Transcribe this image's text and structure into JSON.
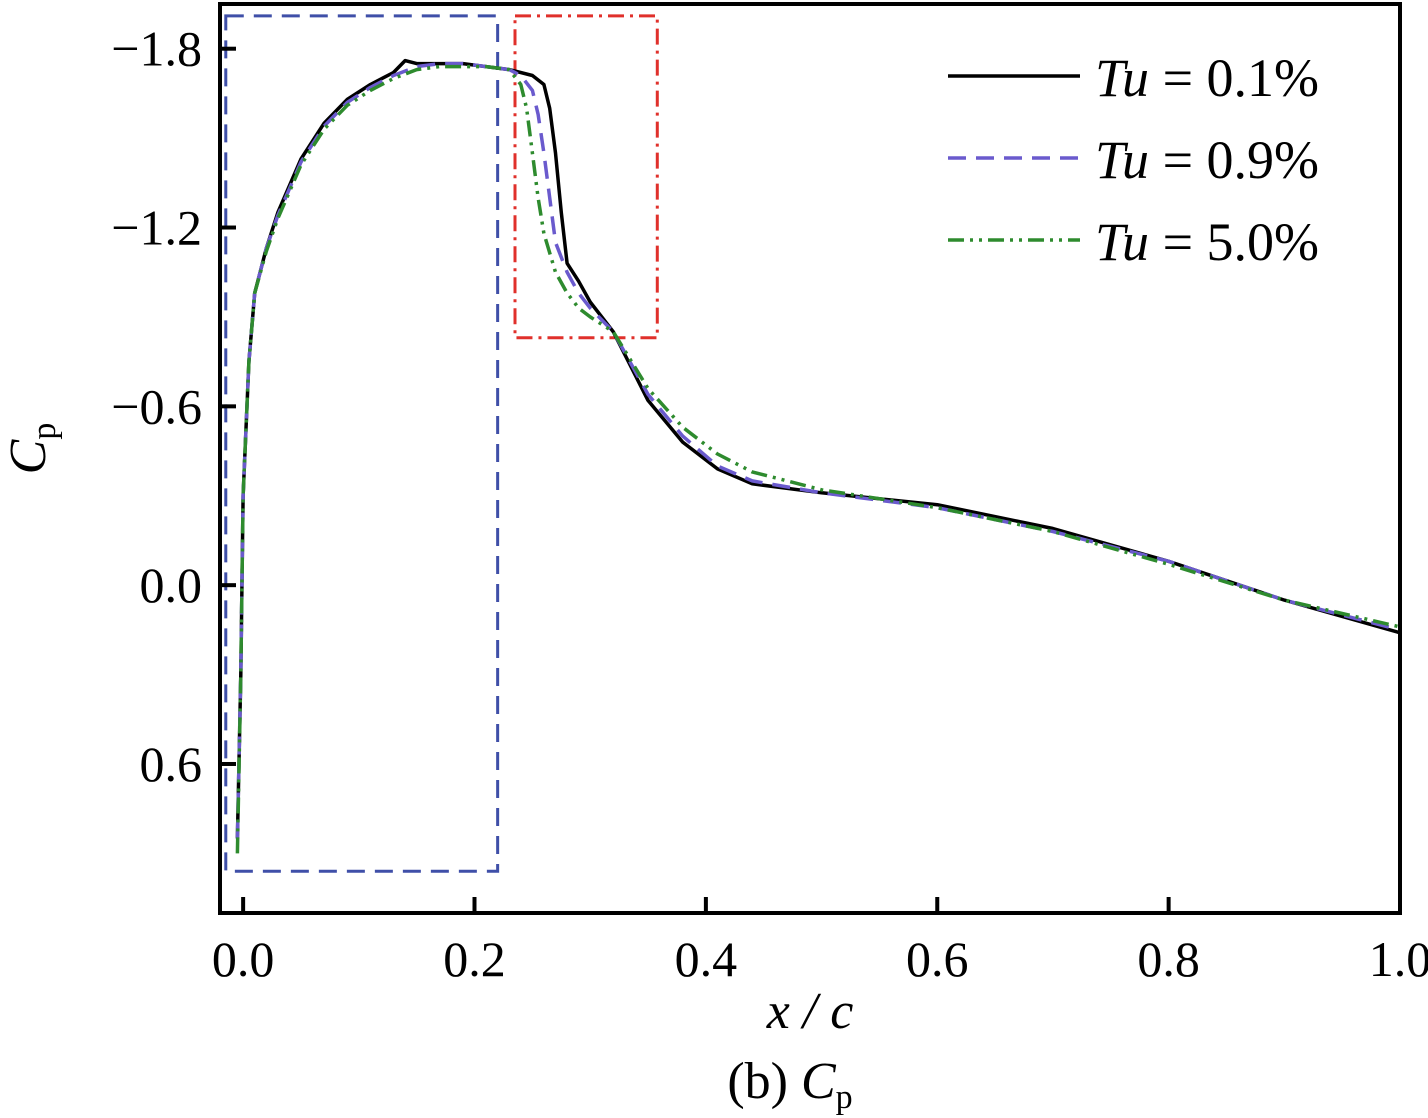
{
  "chart_data": {
    "type": "line",
    "xlabel": "x / c",
    "ylabel": {
      "main": "C",
      "sub": "p"
    },
    "caption": {
      "prefix": "(b) ",
      "main": "C",
      "sub": "p"
    },
    "xlim": [
      -0.02,
      1.0
    ],
    "ylim": [
      -1.95,
      1.1
    ],
    "y_inverted": true,
    "grid": false,
    "legend_position": "top-right",
    "x_ticks": [
      {
        "value": 0.0,
        "label": "0.0"
      },
      {
        "value": 0.2,
        "label": "0.2"
      },
      {
        "value": 0.4,
        "label": "0.4"
      },
      {
        "value": 0.6,
        "label": "0.6"
      },
      {
        "value": 0.8,
        "label": "0.8"
      },
      {
        "value": 1.0,
        "label": "1.0"
      }
    ],
    "y_ticks": [
      {
        "value": -1.8,
        "label": "−1.8"
      },
      {
        "value": -1.2,
        "label": "−1.2"
      },
      {
        "value": -0.6,
        "label": "−0.6"
      },
      {
        "value": 0.0,
        "label": "0.0"
      },
      {
        "value": 0.6,
        "label": "0.6"
      }
    ],
    "series": [
      {
        "name": "Tu = 0.1%",
        "name_var": "Tu",
        "name_rest": " = 0.1%",
        "color": "#000000",
        "dash": "",
        "x": [
          -0.005,
          -0.002,
          0.0,
          0.005,
          0.01,
          0.02,
          0.03,
          0.05,
          0.07,
          0.09,
          0.11,
          0.13,
          0.14,
          0.15,
          0.17,
          0.19,
          0.21,
          0.23,
          0.25,
          0.26,
          0.265,
          0.27,
          0.275,
          0.28,
          0.29,
          0.3,
          0.32,
          0.35,
          0.38,
          0.41,
          0.44,
          0.5,
          0.6,
          0.7,
          0.8,
          0.9,
          1.0
        ],
        "values": [
          0.85,
          0.3,
          -0.3,
          -0.75,
          -0.98,
          -1.13,
          -1.25,
          -1.43,
          -1.55,
          -1.63,
          -1.68,
          -1.72,
          -1.76,
          -1.75,
          -1.75,
          -1.75,
          -1.74,
          -1.73,
          -1.71,
          -1.68,
          -1.6,
          -1.45,
          -1.25,
          -1.08,
          -1.02,
          -0.95,
          -0.85,
          -0.62,
          -0.48,
          -0.39,
          -0.34,
          -0.31,
          -0.27,
          -0.19,
          -0.08,
          0.05,
          0.16
        ]
      },
      {
        "name": "Tu = 0.9%",
        "name_var": "Tu",
        "name_rest": " = 0.9%",
        "color": "#6a5acd",
        "dash": "18,10",
        "x": [
          -0.005,
          -0.002,
          0.0,
          0.005,
          0.01,
          0.02,
          0.03,
          0.05,
          0.07,
          0.09,
          0.11,
          0.13,
          0.15,
          0.17,
          0.19,
          0.21,
          0.23,
          0.24,
          0.25,
          0.255,
          0.26,
          0.265,
          0.27,
          0.28,
          0.29,
          0.3,
          0.32,
          0.35,
          0.38,
          0.41,
          0.44,
          0.5,
          0.6,
          0.7,
          0.8,
          0.9,
          1.0
        ],
        "values": [
          0.85,
          0.3,
          -0.3,
          -0.75,
          -0.98,
          -1.13,
          -1.24,
          -1.42,
          -1.54,
          -1.62,
          -1.67,
          -1.71,
          -1.74,
          -1.75,
          -1.75,
          -1.74,
          -1.73,
          -1.71,
          -1.66,
          -1.58,
          -1.45,
          -1.3,
          -1.15,
          -1.05,
          -0.98,
          -0.93,
          -0.85,
          -0.64,
          -0.5,
          -0.4,
          -0.35,
          -0.31,
          -0.26,
          -0.18,
          -0.08,
          0.05,
          0.15
        ]
      },
      {
        "name": "Tu = 5.0%",
        "name_var": "Tu",
        "name_rest": " = 5.0%",
        "color": "#2e8b2e",
        "dash": "16,6,3,6,3,6",
        "x": [
          -0.005,
          -0.002,
          0.0,
          0.005,
          0.01,
          0.02,
          0.03,
          0.05,
          0.07,
          0.09,
          0.11,
          0.13,
          0.15,
          0.17,
          0.19,
          0.21,
          0.23,
          0.24,
          0.245,
          0.25,
          0.255,
          0.26,
          0.27,
          0.28,
          0.29,
          0.3,
          0.32,
          0.35,
          0.38,
          0.41,
          0.44,
          0.5,
          0.6,
          0.7,
          0.8,
          0.9,
          1.0
        ],
        "values": [
          0.9,
          0.3,
          -0.3,
          -0.75,
          -0.98,
          -1.12,
          -1.23,
          -1.41,
          -1.53,
          -1.61,
          -1.66,
          -1.7,
          -1.73,
          -1.74,
          -1.74,
          -1.74,
          -1.73,
          -1.68,
          -1.6,
          -1.45,
          -1.3,
          -1.18,
          -1.05,
          -0.98,
          -0.93,
          -0.9,
          -0.85,
          -0.66,
          -0.53,
          -0.44,
          -0.38,
          -0.32,
          -0.26,
          -0.18,
          -0.07,
          0.05,
          0.14
        ]
      }
    ],
    "annotations": [
      {
        "type": "dashed-rectangle",
        "color": "#3f4fa8",
        "dash": "18,10",
        "x": [
          -0.015,
          0.22
        ],
        "y": [
          -1.91,
          0.96
        ]
      },
      {
        "type": "dash-dot-rectangle",
        "color": "#e0302b",
        "dash": "16,6,3,6",
        "x": [
          0.235,
          0.358
        ],
        "y": [
          -1.91,
          -0.83
        ]
      }
    ]
  }
}
